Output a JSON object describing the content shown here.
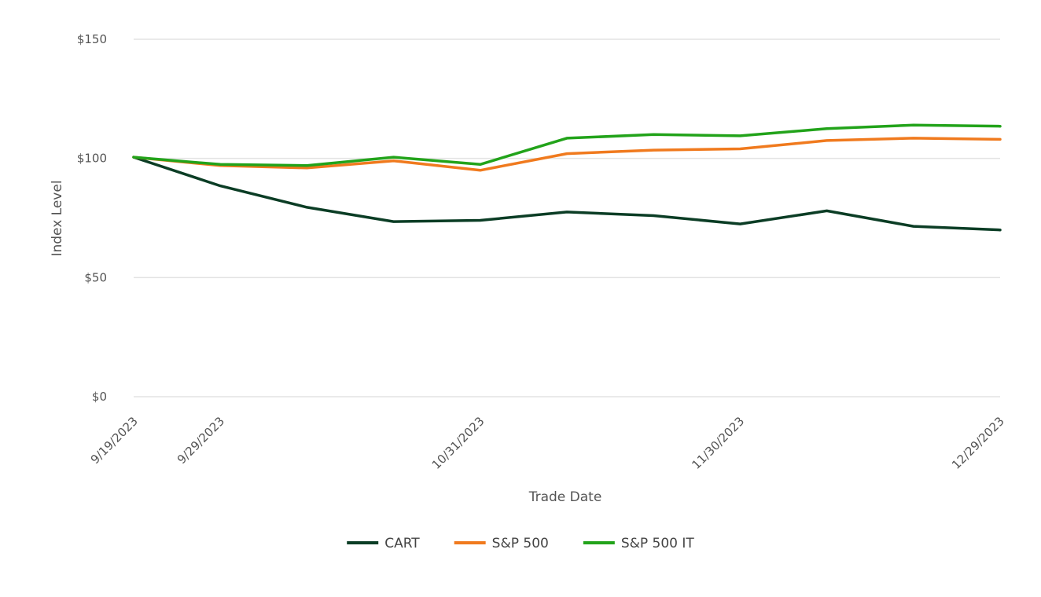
{
  "chart_data": {
    "type": "line",
    "title": "",
    "xlabel": "Trade Date",
    "ylabel": "Index Level",
    "ylim": [
      0,
      150
    ],
    "y_ticks": [
      {
        "value": 0,
        "label": "$0"
      },
      {
        "value": 50,
        "label": "$50"
      },
      {
        "value": 100,
        "label": "$100"
      },
      {
        "value": 150,
        "label": "$150"
      }
    ],
    "x_tick_labels": [
      {
        "index": 0,
        "label": "9/19/2023"
      },
      {
        "index": 1,
        "label": "9/29/2023"
      },
      {
        "index": 4,
        "label": "10/31/2023"
      },
      {
        "index": 7,
        "label": "11/30/2023"
      },
      {
        "index": 10,
        "label": "12/29/2023"
      }
    ],
    "point_count": 11,
    "grid": true,
    "legend_position": "bottom-center",
    "series": [
      {
        "name": "CART",
        "color": "#0b3d25",
        "values": [
          100.5,
          88.5,
          79.5,
          73.5,
          74,
          77.5,
          76,
          72.5,
          78,
          71.5,
          70
        ]
      },
      {
        "name": "S&P 500",
        "color": "#f07a1e",
        "values": [
          100.5,
          97,
          96,
          99,
          95,
          102,
          103.5,
          104,
          107.5,
          108.5,
          108
        ]
      },
      {
        "name": "S&P 500 IT",
        "color": "#22a31a",
        "values": [
          100.5,
          97.5,
          97,
          100.5,
          97.5,
          108.5,
          110,
          109.5,
          112.5,
          114,
          113.5
        ]
      }
    ]
  }
}
